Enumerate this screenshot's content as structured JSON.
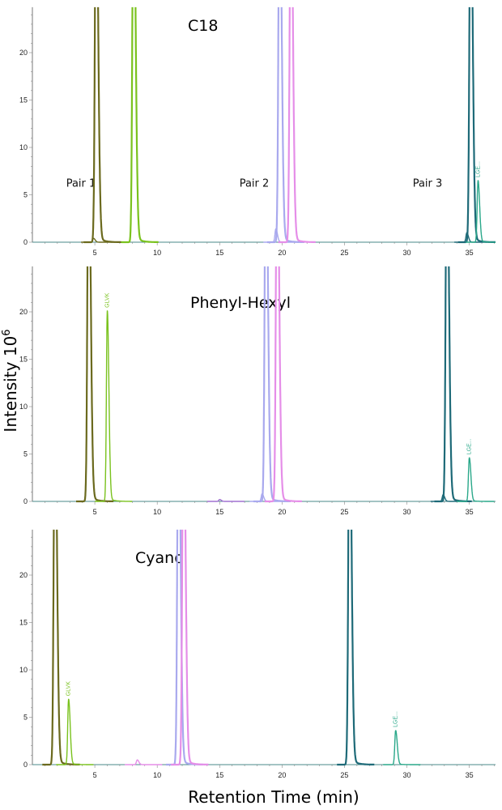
{
  "chart_data": [
    {
      "type": "line",
      "title": "C18",
      "xlim": [
        0,
        37.1
      ],
      "ylim": [
        0,
        24.8
      ],
      "xticks": [
        5,
        10,
        15,
        20,
        25,
        30,
        35
      ],
      "yticks": [
        0,
        5,
        10,
        15,
        20
      ],
      "annotations": [
        {
          "text": "Pair 1",
          "x": 3.5,
          "y": 6.3
        },
        {
          "text": "Pair 2",
          "x": 17.5,
          "y": 6.3
        },
        {
          "text": "Pair 3",
          "x": 31.5,
          "y": 6.3
        }
      ],
      "peaks": [
        {
          "rt": 4.9,
          "height": 0.4,
          "color": "#6b6a1e"
        },
        {
          "rt": 5.1,
          "height": 40,
          "color": "#6b6a1e"
        },
        {
          "rt": 8.1,
          "height": 40,
          "color": "#7ac21e"
        },
        {
          "rt": 19.5,
          "height": 1.4,
          "color": "#a9a9ee"
        },
        {
          "rt": 19.8,
          "height": 40,
          "color": "#a9a9ee"
        },
        {
          "rt": 20.7,
          "height": 40,
          "color": "#e58ee8"
        },
        {
          "rt": 34.8,
          "height": 1.0,
          "color": "#1e6a78"
        },
        {
          "rt": 35.1,
          "height": 40,
          "color": "#1e6a78"
        },
        {
          "rt": 35.7,
          "height": 6.5,
          "color": "#2aa88a",
          "label": "LGE..."
        }
      ]
    },
    {
      "type": "line",
      "title": "Phenyl-Hexyl",
      "xlim": [
        0,
        37.1
      ],
      "ylim": [
        0,
        24.8
      ],
      "xticks": [
        5,
        10,
        15,
        20,
        25,
        30,
        35
      ],
      "yticks": [
        0,
        5,
        10,
        15,
        20
      ],
      "peaks": [
        {
          "rt": 4.5,
          "height": 40,
          "color": "#6b6a1e"
        },
        {
          "rt": 6.0,
          "height": 20.1,
          "color": "#7ac21e",
          "label": "GLVK"
        },
        {
          "rt": 15.0,
          "height": 0.2,
          "color": "#a070d0"
        },
        {
          "rt": 18.4,
          "height": 0.8,
          "color": "#a9a9ee"
        },
        {
          "rt": 18.7,
          "height": 40,
          "color": "#a9a9ee"
        },
        {
          "rt": 19.6,
          "height": 40,
          "color": "#e58ee8"
        },
        {
          "rt": 32.9,
          "height": 0.7,
          "color": "#1e6a78"
        },
        {
          "rt": 33.2,
          "height": 40,
          "color": "#1e6a78"
        },
        {
          "rt": 35.0,
          "height": 4.6,
          "color": "#2aa88a",
          "label": "LGE..."
        }
      ]
    },
    {
      "type": "line",
      "title": "Cyano",
      "xlim": [
        0,
        37.1
      ],
      "ylim": [
        0,
        24.8
      ],
      "xticks": [
        5,
        10,
        15,
        20,
        25,
        30,
        35
      ],
      "yticks": [
        0,
        5,
        10,
        15,
        20
      ],
      "xlabel": "Retention Time (min)",
      "peaks": [
        {
          "rt": 1.8,
          "height": 40,
          "color": "#6b6a1e"
        },
        {
          "rt": 2.9,
          "height": 6.9,
          "color": "#7ac21e",
          "label": "GLVK"
        },
        {
          "rt": 8.4,
          "height": 0.5,
          "color": "#e58ee8"
        },
        {
          "rt": 11.7,
          "height": 40,
          "color": "#a9a9ee"
        },
        {
          "rt": 12.1,
          "height": 40,
          "color": "#e58ee8"
        },
        {
          "rt": 25.4,
          "height": 40,
          "color": "#1e6a78"
        },
        {
          "rt": 29.1,
          "height": 3.6,
          "color": "#2aa88a",
          "label": "LGE..."
        }
      ]
    }
  ],
  "ylabel": "Intensity 10",
  "ylabel_exponent": "6",
  "xlabel": "Retention Time (min)"
}
